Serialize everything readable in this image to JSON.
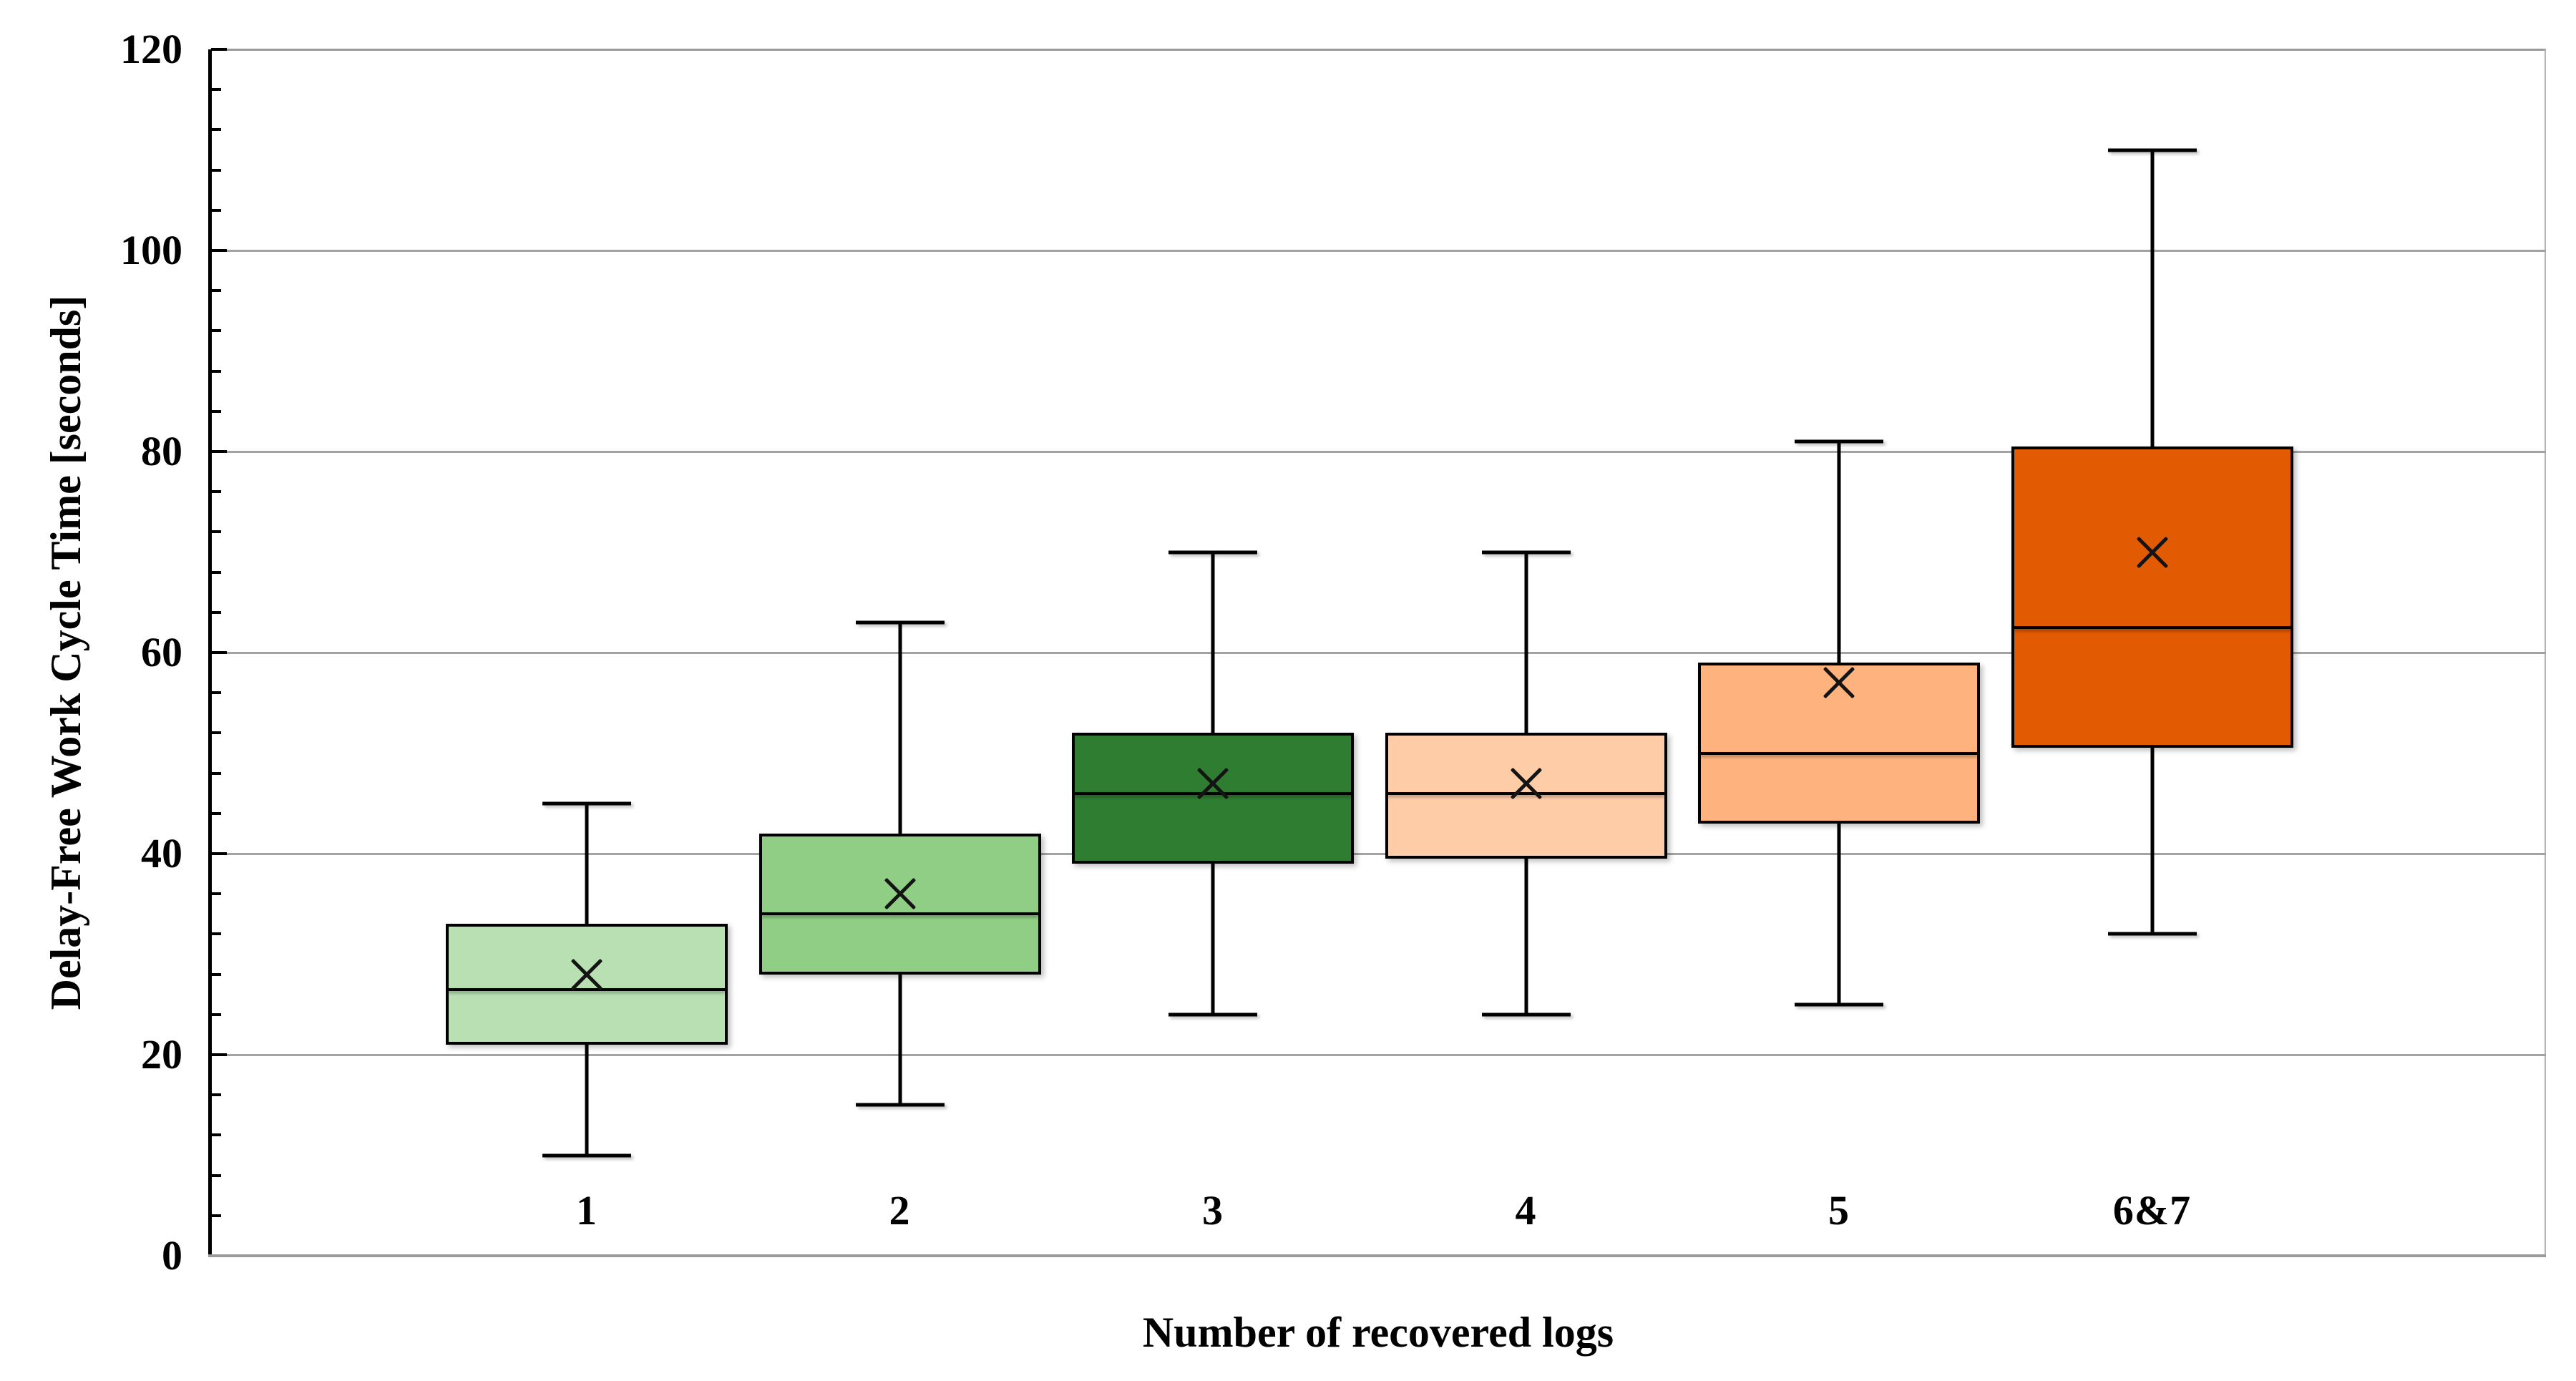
{
  "chart_data": {
    "type": "boxplot",
    "title": "",
    "xlabel": "Number of recovered logs",
    "ylabel": "Delay-Free Work Cycle Time [seconds]",
    "ylim": [
      0,
      120
    ],
    "ytick_interval": 20,
    "yminor_tick_interval": 4,
    "ytick_labels": [
      "0",
      "20",
      "40",
      "60",
      "80",
      "100",
      "120"
    ],
    "grid": "horizontal-major",
    "legend": "none",
    "mean_marker": "x",
    "categories": [
      "1",
      "2",
      "3",
      "4",
      "5",
      "6&7"
    ],
    "series": [
      {
        "category": "1",
        "min": 10,
        "q1": 21,
        "median": 26.5,
        "mean": 28,
        "q3": 33,
        "max": 45,
        "fill": "#b8e0b2"
      },
      {
        "category": "2",
        "min": 15,
        "q1": 28,
        "median": 34,
        "mean": 36,
        "q3": 42,
        "max": 63,
        "fill": "#90ce85"
      },
      {
        "category": "3",
        "min": 24,
        "q1": 39,
        "median": 46,
        "mean": 47,
        "q3": 52,
        "max": 70,
        "fill": "#2e7d31"
      },
      {
        "category": "4",
        "min": 24,
        "q1": 39.5,
        "median": 46,
        "mean": 47,
        "q3": 52,
        "max": 70,
        "fill": "#fecca7"
      },
      {
        "category": "5",
        "min": 25,
        "q1": 43,
        "median": 50,
        "mean": 57,
        "q3": 59,
        "max": 81,
        "fill": "#feb27e"
      },
      {
        "category": "6&7",
        "min": 32,
        "q1": 50.5,
        "median": 62.5,
        "mean": 70,
        "q3": 80.5,
        "max": 110,
        "fill": "#e25a02"
      }
    ],
    "colors": {
      "box_border": "#000000",
      "gridline": "#a3a3a3",
      "y_axis_line": "#000000",
      "x_axis_line": "#9b9b9b",
      "text": "#000000",
      "background": "#ffffff"
    }
  }
}
